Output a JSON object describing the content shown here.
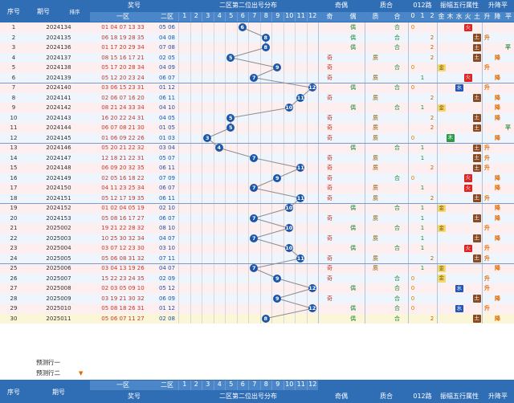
{
  "header": {
    "serial": "序号",
    "issue": "期号",
    "sort": "排序",
    "prize": "奖号",
    "zone1": "一区",
    "zone2": "二区",
    "dist_title": "二区第二位出号分布",
    "digits": [
      "1",
      "2",
      "3",
      "4",
      "5",
      "6",
      "7",
      "8",
      "9",
      "10",
      "11",
      "12"
    ],
    "oddeven_title": "奇偶",
    "odd": "奇",
    "even": "偶",
    "primecomp_title": "质合",
    "prime": "质",
    "composite": "合",
    "route_title": "012路",
    "route_labels": [
      "0",
      "1",
      "2"
    ],
    "element_title": "振幅五行属性",
    "elements": [
      "金",
      "木",
      "水",
      "火",
      "土"
    ],
    "trend_title": "升降平",
    "trends": [
      "升",
      "降",
      "平"
    ]
  },
  "footer": {
    "serial": "序号",
    "issue": "期号",
    "prize": "奖号",
    "zone1": "一区",
    "zone2": "二区",
    "dist_title": "二区第二位出号分布",
    "oddeven_title": "奇偶",
    "primecomp_title": "质合",
    "route_title": "012路",
    "element_title": "振幅五行属性",
    "trend_title": "升降平"
  },
  "predict": [
    "预测行一",
    "预测行二"
  ],
  "rows": [
    {
      "n": "1",
      "issue": "2024134",
      "z1": "01 04 07 13 33",
      "z2": "05 06",
      "pos": 6,
      "oe": "偶",
      "pc": "合",
      "r": "0",
      "el": "火",
      "t": ""
    },
    {
      "n": "2",
      "issue": "2024135",
      "z1": "06 18 19 28 35",
      "z2": "04 08",
      "pos": 8,
      "oe": "偶",
      "pc": "合",
      "r": "2",
      "el": "土",
      "t": "升"
    },
    {
      "n": "3",
      "issue": "2024136",
      "z1": "01 17 20 29 34",
      "z2": "07 08",
      "pos": 8,
      "oe": "偶",
      "pc": "合",
      "r": "2",
      "el": "土",
      "t": "平"
    },
    {
      "n": "4",
      "issue": "2024137",
      "z1": "08 15 16 17 21",
      "z2": "02 05",
      "pos": 5,
      "oe": "奇",
      "pc": "质",
      "r": "2",
      "el": "土",
      "t": "降"
    },
    {
      "n": "5",
      "issue": "2024138",
      "z1": "05 17 20 28 34",
      "z2": "04 09",
      "pos": 9,
      "oe": "奇",
      "pc": "合",
      "r": "0",
      "el": "金",
      "t": "升"
    },
    {
      "n": "6",
      "issue": "2024139",
      "z1": "05 12 20 23 24",
      "z2": "06 07",
      "pos": 7,
      "oe": "奇",
      "pc": "质",
      "r": "1",
      "el": "火",
      "t": "降"
    },
    {
      "n": "7",
      "issue": "2024140",
      "z1": "03 06 15 23 31",
      "z2": "01 12",
      "pos": 12,
      "oe": "偶",
      "pc": "合",
      "r": "0",
      "el": "水",
      "t": "升"
    },
    {
      "n": "8",
      "issue": "2024141",
      "z1": "02 06 07 16 20",
      "z2": "06 11",
      "pos": 11,
      "oe": "奇",
      "pc": "质",
      "r": "2",
      "el": "土",
      "t": "降"
    },
    {
      "n": "9",
      "issue": "2024142",
      "z1": "08 21 24 33 34",
      "z2": "04 10",
      "pos": 10,
      "oe": "偶",
      "pc": "合",
      "r": "1",
      "el": "金",
      "t": "降"
    },
    {
      "n": "10",
      "issue": "2024143",
      "z1": "16 20 22 24 31",
      "z2": "04 05",
      "pos": 5,
      "oe": "奇",
      "pc": "质",
      "r": "2",
      "el": "土",
      "t": "降"
    },
    {
      "n": "11",
      "issue": "2024144",
      "z1": "06 07 08 21 30",
      "z2": "01 05",
      "pos": 5,
      "oe": "奇",
      "pc": "质",
      "r": "2",
      "el": "土",
      "t": "平"
    },
    {
      "n": "12",
      "issue": "2024145",
      "z1": "01 06 09 22 26",
      "z2": "01 03",
      "pos": 3,
      "oe": "奇",
      "pc": "质",
      "r": "0",
      "el": "木",
      "t": "降"
    },
    {
      "n": "13",
      "issue": "2024146",
      "z1": "05 20 21 22 32",
      "z2": "03 04",
      "pos": 4,
      "oe": "偶",
      "pc": "合",
      "r": "1",
      "el": "土",
      "t": "升"
    },
    {
      "n": "14",
      "issue": "2024147",
      "z1": "12 18 21 22 31",
      "z2": "05 07",
      "pos": 7,
      "oe": "奇",
      "pc": "质",
      "r": "1",
      "el": "土",
      "t": "升"
    },
    {
      "n": "15",
      "issue": "2024148",
      "z1": "06 09 20 32 35",
      "z2": "06 11",
      "pos": 11,
      "oe": "奇",
      "pc": "质",
      "r": "2",
      "el": "土",
      "t": "升"
    },
    {
      "n": "16",
      "issue": "2024149",
      "z1": "02 05 16 18 22",
      "z2": "07 09",
      "pos": 9,
      "oe": "奇",
      "pc": "合",
      "r": "0",
      "el": "火",
      "t": "降"
    },
    {
      "n": "17",
      "issue": "2024150",
      "z1": "04 11 23 25 34",
      "z2": "06 07",
      "pos": 7,
      "oe": "奇",
      "pc": "质",
      "r": "1",
      "el": "火",
      "t": "降"
    },
    {
      "n": "18",
      "issue": "2024151",
      "z1": "05 12 17 19 35",
      "z2": "06 11",
      "pos": 11,
      "oe": "奇",
      "pc": "质",
      "r": "2",
      "el": "土",
      "t": "升"
    },
    {
      "n": "19",
      "issue": "2024152",
      "z1": "01 02 04 05 19",
      "z2": "02 10",
      "pos": 10,
      "oe": "偶",
      "pc": "合",
      "r": "1",
      "el": "金",
      "t": "降"
    },
    {
      "n": "20",
      "issue": "2024153",
      "z1": "05 08 16 17 27",
      "z2": "06 07",
      "pos": 7,
      "oe": "奇",
      "pc": "质",
      "r": "1",
      "el": "土",
      "t": "降"
    },
    {
      "n": "21",
      "issue": "2025002",
      "z1": "19 21 22 28 32",
      "z2": "08 10",
      "pos": 10,
      "oe": "偶",
      "pc": "合",
      "r": "1",
      "el": "金",
      "t": "升"
    },
    {
      "n": "22",
      "issue": "2025003",
      "z1": "10 25 30 32 34",
      "z2": "04 07",
      "pos": 7,
      "oe": "奇",
      "pc": "质",
      "r": "1",
      "el": "土",
      "t": "降"
    },
    {
      "n": "23",
      "issue": "2025004",
      "z1": "03 07 12 23 30",
      "z2": "03 10",
      "pos": 10,
      "oe": "偶",
      "pc": "合",
      "r": "1",
      "el": "火",
      "t": "升"
    },
    {
      "n": "24",
      "issue": "2025005",
      "z1": "05 06 08 31 32",
      "z2": "07 11",
      "pos": 11,
      "oe": "奇",
      "pc": "质",
      "r": "2",
      "el": "土",
      "t": "升"
    },
    {
      "n": "25",
      "issue": "2025006",
      "z1": "03 04 13 19 26",
      "z2": "04 07",
      "pos": 7,
      "oe": "奇",
      "pc": "质",
      "r": "1",
      "el": "金",
      "t": "降"
    },
    {
      "n": "26",
      "issue": "2025007",
      "z1": "15 22 23 24 35",
      "z2": "02 09",
      "pos": 9,
      "oe": "奇",
      "pc": "合",
      "r": "0",
      "el": "金",
      "t": "升"
    },
    {
      "n": "27",
      "issue": "2025008",
      "z1": "02 03 05 09 10",
      "z2": "05 12",
      "pos": 12,
      "oe": "偶",
      "pc": "合",
      "r": "0",
      "el": "水",
      "t": "升"
    },
    {
      "n": "28",
      "issue": "2025009",
      "z1": "03 19 21 30 32",
      "z2": "06 09",
      "pos": 9,
      "oe": "奇",
      "pc": "合",
      "r": "0",
      "el": "土",
      "t": "降"
    },
    {
      "n": "29",
      "issue": "2025010",
      "z1": "05 08 18 26 31",
      "z2": "01 12",
      "pos": 12,
      "oe": "偶",
      "pc": "合",
      "r": "0",
      "el": "水",
      "t": "升"
    },
    {
      "n": "30",
      "issue": "2025011",
      "z1": "05 06 07 11 27",
      "z2": "02 08",
      "pos": 8,
      "oe": "偶",
      "pc": "合",
      "r": "2",
      "el": "土",
      "t": "降"
    }
  ],
  "colors": {
    "header_bg": "#2f6db5",
    "row_odd": "#fdeef0",
    "row_even": "#eef5fc",
    "ball": "#1c56a8",
    "trend_line": "#8e8e8e"
  }
}
